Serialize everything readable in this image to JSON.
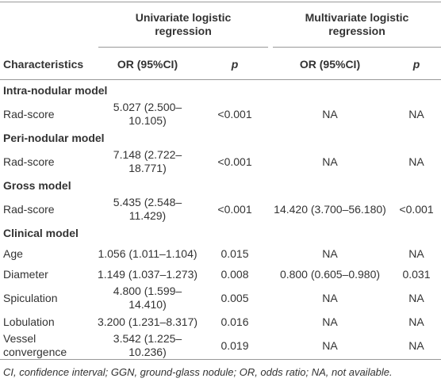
{
  "table": {
    "header": {
      "groups": [
        "Univariate logistic regression",
        "Multivariate logistic regression"
      ],
      "columns": [
        "Characteristics",
        "OR (95%CI)",
        "p",
        "OR (95%CI)",
        "p"
      ]
    },
    "sections": [
      {
        "title": "Intra-nodular model",
        "rows": [
          [
            "Rad-score",
            "5.027 (2.500–10.105)",
            "<0.001",
            "NA",
            "NA"
          ]
        ]
      },
      {
        "title": "Peri-nodular model",
        "rows": [
          [
            "Rad-score",
            "7.148 (2.722–18.771)",
            "<0.001",
            "NA",
            "NA"
          ]
        ]
      },
      {
        "title": "Gross model",
        "rows": [
          [
            "Rad-score",
            "5.435 (2.548–11.429)",
            "<0.001",
            "14.420 (3.700–56.180)",
            "<0.001"
          ]
        ]
      },
      {
        "title": "Clinical model",
        "rows": [
          [
            "Age",
            "1.056 (1.011–1.104)",
            "0.015",
            "NA",
            "NA"
          ],
          [
            "Diameter",
            "1.149 (1.037–1.273)",
            "0.008",
            "0.800 (0.605–0.980)",
            "0.031"
          ],
          [
            "Spiculation",
            "4.800 (1.599–14.410)",
            "0.005",
            "NA",
            "NA"
          ],
          [
            "Lobulation",
            "3.200 (1.231–8.317)",
            "0.016",
            "NA",
            "NA"
          ],
          [
            "Vessel convergence",
            "3.542 (1.225–10.236)",
            "0.019",
            "NA",
            "NA"
          ]
        ]
      }
    ],
    "footnote": "CI, confidence interval; GGN, ground-glass nodule; OR, odds ratio; NA, not available."
  }
}
